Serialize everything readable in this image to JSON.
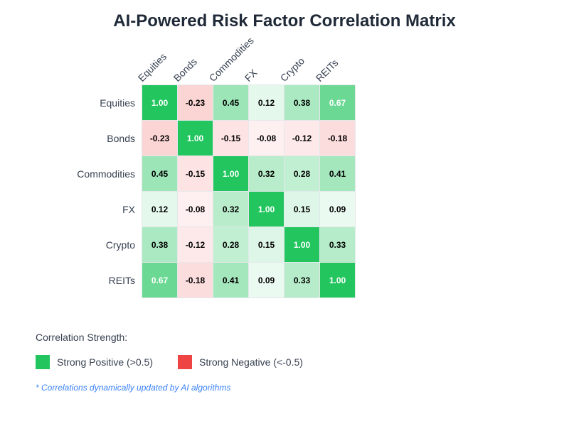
{
  "chart_data": {
    "type": "heatmap",
    "title": "AI-Powered Risk Factor Correlation Matrix",
    "rows": [
      "Equities",
      "Bonds",
      "Commodities",
      "FX",
      "Crypto",
      "REITs"
    ],
    "columns": [
      "Equities",
      "Bonds",
      "Commodities",
      "FX",
      "Crypto",
      "REITs"
    ],
    "values": [
      [
        1.0,
        -0.23,
        0.45,
        0.12,
        0.38,
        0.67
      ],
      [
        -0.23,
        1.0,
        -0.15,
        -0.08,
        -0.12,
        -0.18
      ],
      [
        0.45,
        -0.15,
        1.0,
        0.32,
        0.28,
        0.41
      ],
      [
        0.12,
        -0.08,
        0.32,
        1.0,
        0.15,
        0.09
      ],
      [
        0.38,
        -0.12,
        0.28,
        0.15,
        1.0,
        0.33
      ],
      [
        0.67,
        -0.18,
        0.41,
        0.09,
        0.33,
        1.0
      ]
    ],
    "value_range": [
      -1,
      1
    ],
    "colors": {
      "positive": "#22c55e",
      "negative": "#ef4444"
    }
  },
  "legend": {
    "title": "Correlation Strength:",
    "items": [
      {
        "label": "Strong Positive (>0.5)",
        "color": "#22c55e"
      },
      {
        "label": "Strong Negative (<-0.5)",
        "color": "#ef4444"
      }
    ]
  },
  "note": "* Correlations dynamically updated by AI algorithms"
}
